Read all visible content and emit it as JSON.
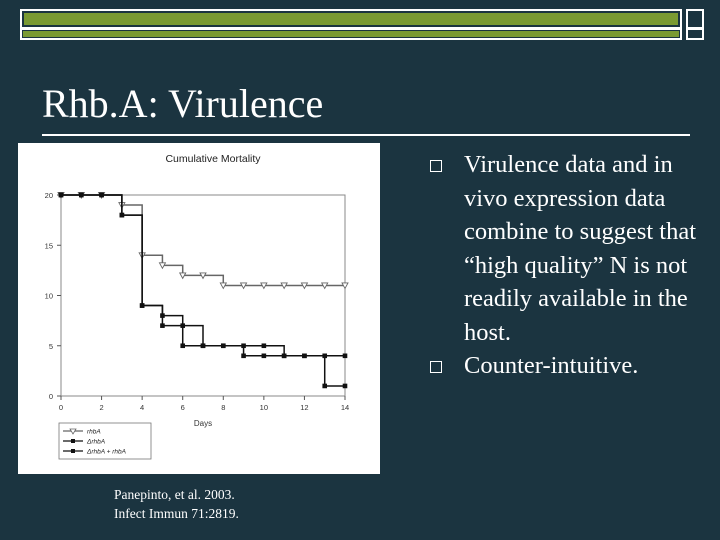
{
  "slide": {
    "title": "Rhb.A: Virulence",
    "citation_line1": "Panepinto, et al. 2003.",
    "citation_line2": "Infect Immun 71:2819.",
    "bullets": [
      "Virulence data and in vivo expression data combine to suggest that “high quality” N is not readily available in the host.",
      "Counter-intuitive."
    ],
    "colors": {
      "background": "#1b3440",
      "accent": "#7a9a32",
      "text": "#ffffff"
    }
  },
  "chart_data": {
    "type": "line",
    "title": "Cumulative Mortality",
    "xlabel": "Days",
    "ylabel": "",
    "xlim": [
      0,
      14
    ],
    "ylim": [
      0,
      20
    ],
    "x_ticks": [
      0,
      2,
      4,
      6,
      8,
      10,
      12,
      14
    ],
    "y_ticks": [
      0,
      5,
      10,
      15,
      20
    ],
    "legend_placement": "bottom-left",
    "step": true,
    "series": [
      {
        "name": "rhbA",
        "marker": "triangle",
        "x": [
          0,
          1,
          2,
          3,
          4,
          5,
          6,
          7,
          8,
          9,
          10,
          11,
          12,
          13,
          14
        ],
        "values": [
          20,
          20,
          20,
          19,
          14,
          13,
          12,
          12,
          11,
          11,
          11,
          11,
          11,
          11,
          11
        ]
      },
      {
        "name": "ΔrhbA",
        "marker": "square",
        "x": [
          0,
          1,
          2,
          3,
          4,
          5,
          6,
          7,
          8,
          9,
          10,
          11,
          12,
          13,
          14
        ],
        "values": [
          20,
          20,
          20,
          18,
          9,
          8,
          7,
          5,
          5,
          5,
          5,
          4,
          4,
          1,
          1
        ]
      },
      {
        "name": "ΔrhbA + rhbA",
        "marker": "square",
        "x": [
          0,
          1,
          2,
          3,
          4,
          5,
          6,
          7,
          8,
          9,
          10,
          11,
          12,
          13,
          14
        ],
        "values": [
          20,
          20,
          20,
          18,
          9,
          7,
          5,
          5,
          5,
          4,
          4,
          4,
          4,
          4,
          4
        ]
      }
    ]
  }
}
